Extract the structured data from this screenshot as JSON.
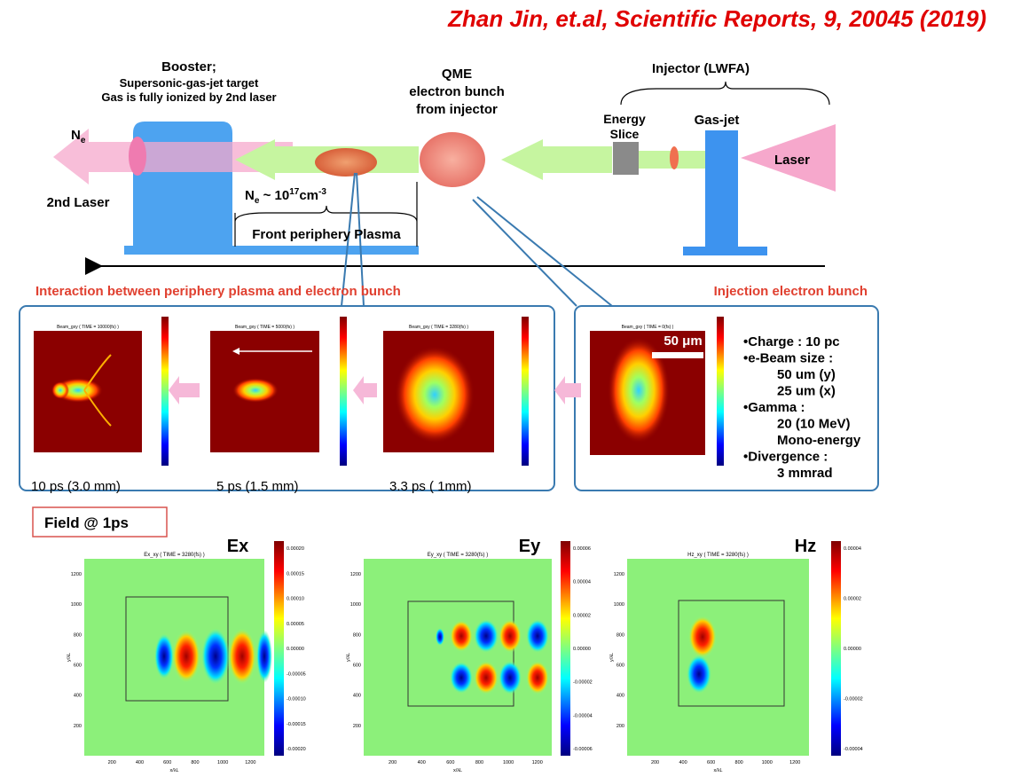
{
  "citation": "Zhan Jin, et.al, Scientific Reports, 9, 20045 (2019)",
  "schematic": {
    "booster": {
      "title": "Booster;",
      "lines": [
        "Supersonic-gas-jet target",
        "Gas is fully ionized by 2nd laser"
      ]
    },
    "ne_label": {
      "base": "N",
      "sub": "e"
    },
    "second_laser": "2nd Laser",
    "density": {
      "base": "N",
      "sub": "e",
      "approx": " ~ 10",
      "exp": "17",
      "unit": "cm",
      "unit_exp": "-3"
    },
    "front_plasma": "Front periphery Plasma",
    "qme": [
      "QME",
      "electron bunch",
      "from injector"
    ],
    "injector": "Injector (LWFA)",
    "energy_slice": [
      "Energy",
      "Slice"
    ],
    "gas_jet": "Gas-jet",
    "laser": "Laser"
  },
  "interaction_label": "Interaction between periphery plasma and electron bunch",
  "injection_label": "Injection electron bunch",
  "snapshots": [
    {
      "title": "Beam_gxy ( TIME = 10000(fs) )",
      "caption": "10 ps (3.0 mm)"
    },
    {
      "title": "Beam_gxy ( TIME = 5000(fs) )",
      "caption": "5 ps (1.5 mm)"
    },
    {
      "title": "Beam_gxy ( TIME = 3280(fs) )",
      "caption": "3.3 ps ( 1mm)"
    },
    {
      "title": "Beam_gxy ( TIME = 0(fs) )"
    }
  ],
  "scale_bar": "50 μm",
  "beam_params": [
    "•Charge : 10 pc",
    "•e-Beam size :",
    "50 um (y)",
    "25 um (x)",
    "•Gamma :",
    "20 (10 MeV)",
    "Mono-energy",
    "•Divergence :",
    "3 mmrad"
  ],
  "field_label": "Field @ 1ps",
  "fields": [
    {
      "name": "Ex",
      "subtitle": "Ex_xy ( TIME = 3280(fs) )",
      "colorbar_ticks": [
        "0.00020",
        "0.00015",
        "0.00010",
        "0.00005",
        "0.00000",
        "-0.00005",
        "-0.00010",
        "-0.00015",
        "-0.00020"
      ],
      "xlabel": "x/λL",
      "ylabel": "y/λL",
      "xticks": [
        "200",
        "400",
        "600",
        "800",
        "1000",
        "1200"
      ],
      "yticks": [
        "1200",
        "1000",
        "800",
        "600",
        "400",
        "200"
      ]
    },
    {
      "name": "Ey",
      "subtitle": "Ey_xy ( TIME = 3280(fs) )",
      "colorbar_ticks": [
        "0.00006",
        "0.00004",
        "0.00002",
        "0.00000",
        "-0.00002",
        "-0.00004",
        "-0.00006"
      ],
      "xlabel": "x/λL",
      "ylabel": "y/λL",
      "xticks": [
        "200",
        "400",
        "600",
        "800",
        "1000",
        "1200"
      ],
      "yticks": [
        "1200",
        "1000",
        "800",
        "600",
        "400",
        "200"
      ]
    },
    {
      "name": "Hz",
      "subtitle": "Hz_xy ( TIME = 3280(fs) )",
      "colorbar_ticks": [
        "0.00004",
        "0.00002",
        "0.00000",
        "-0.00002",
        "-0.00004"
      ],
      "xlabel": "x/λL",
      "ylabel": "y/λL",
      "xticks": [
        "200",
        "400",
        "600",
        "800",
        "1000",
        "1200"
      ],
      "yticks": [
        "1200",
        "1000",
        "800",
        "600",
        "400",
        "200"
      ]
    }
  ]
}
